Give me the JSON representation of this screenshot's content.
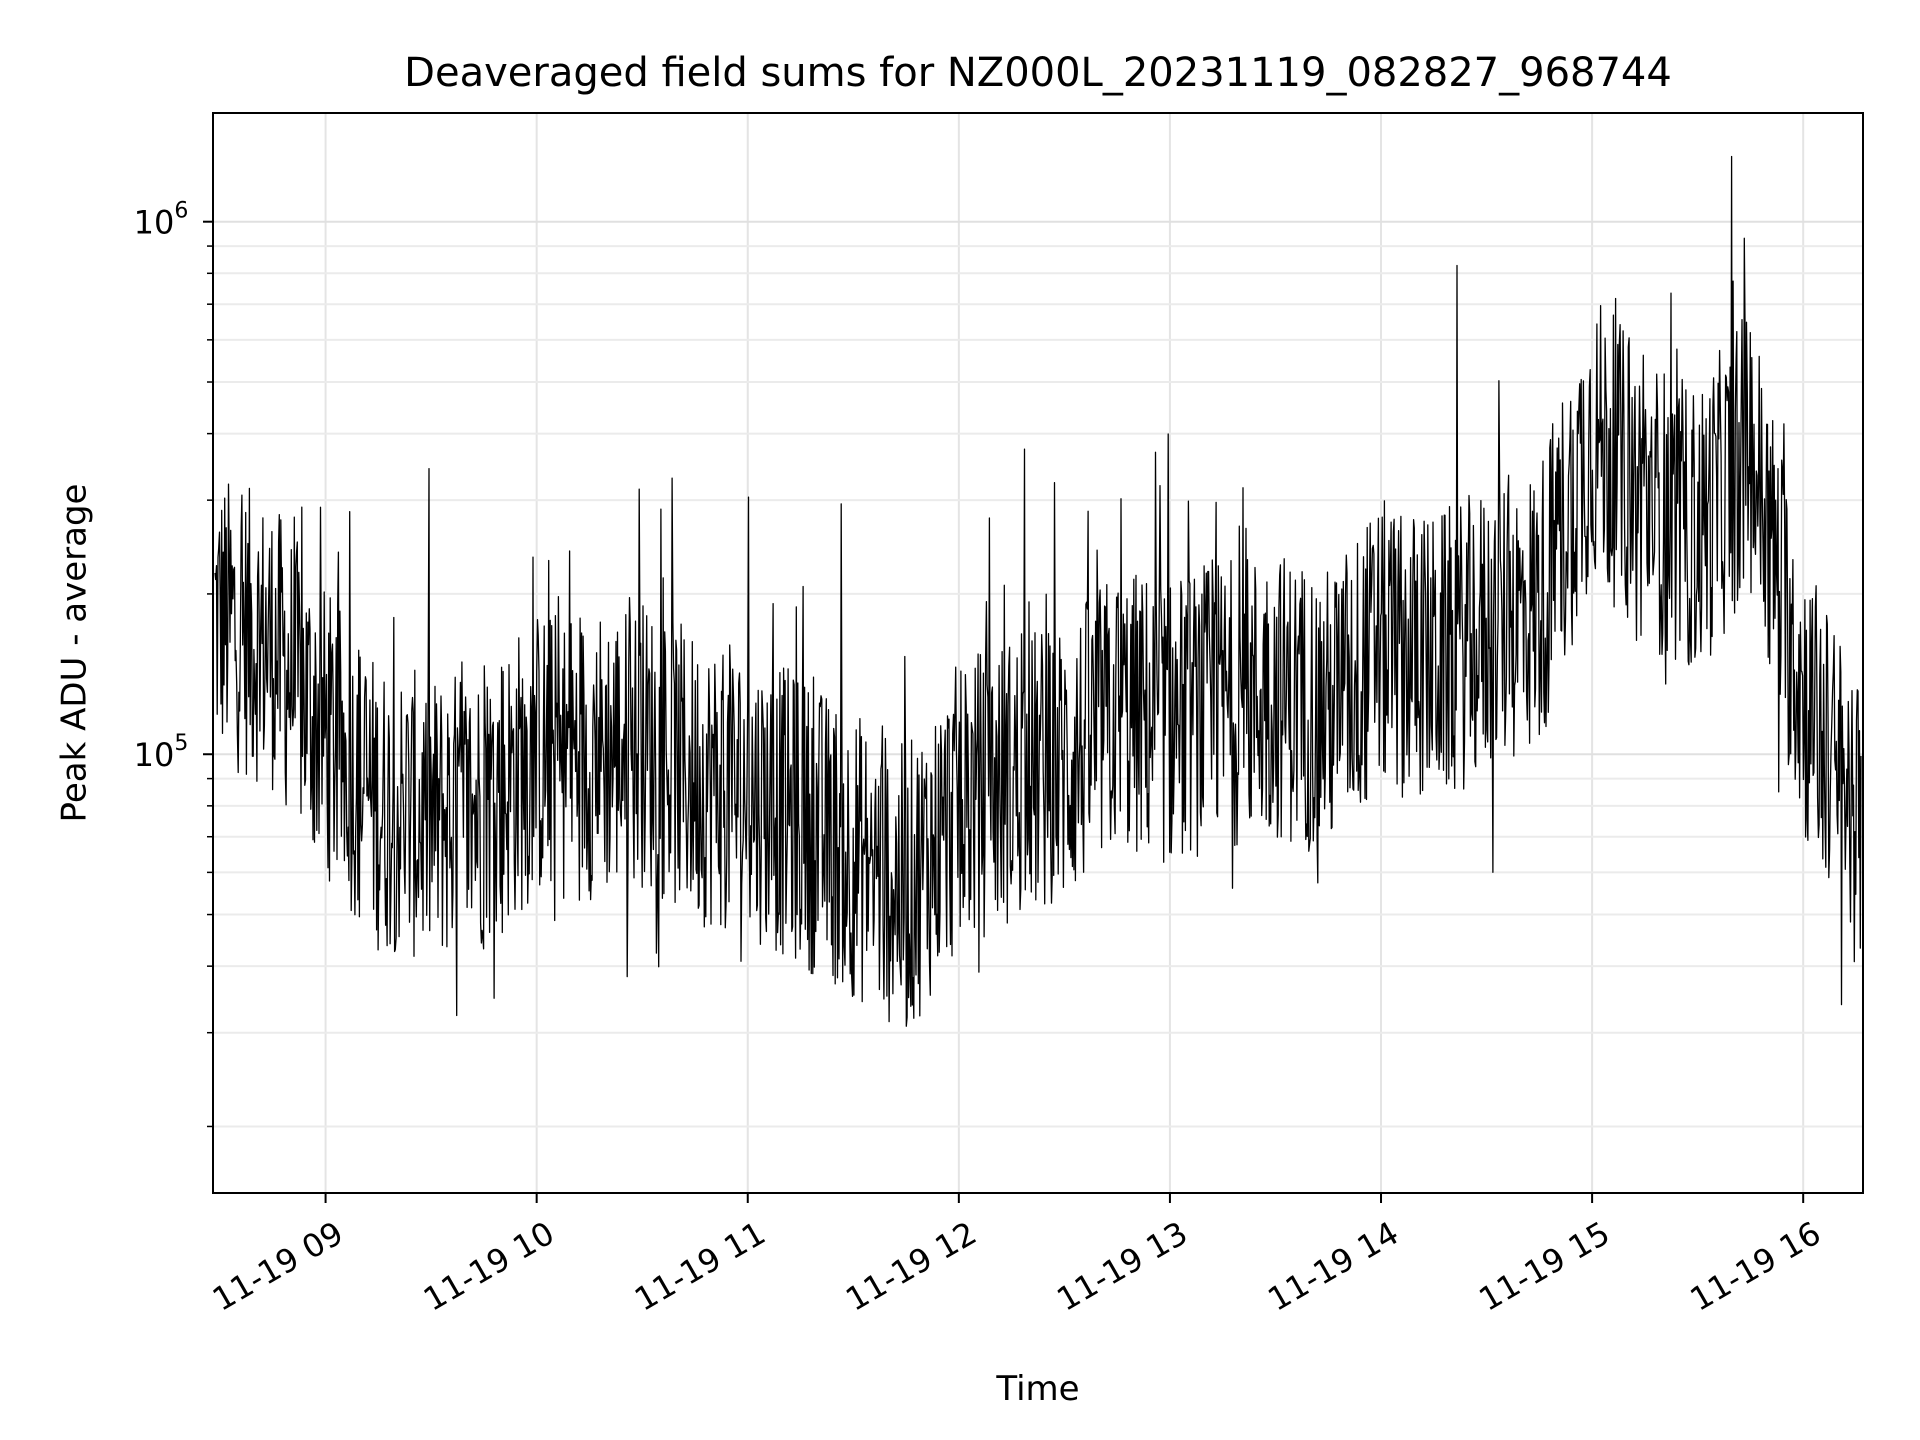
{
  "chart_data": {
    "type": "line",
    "title": "Deaveraged field sums for NZ000L_20231119_082827_968744",
    "xlabel": "Time",
    "ylabel": "Peak ADU - average",
    "yscale": "log",
    "xlim": [
      "2023-11-19 08:28",
      "2023-11-19 16:17"
    ],
    "ylim": [
      15000,
      1600000
    ],
    "grid": true,
    "line_color": "#000000",
    "x_ticks": [
      {
        "value": "2023-11-19 09:00",
        "label": "11-19 09"
      },
      {
        "value": "2023-11-19 10:00",
        "label": "11-19 10"
      },
      {
        "value": "2023-11-19 11:00",
        "label": "11-19 11"
      },
      {
        "value": "2023-11-19 12:00",
        "label": "11-19 12"
      },
      {
        "value": "2023-11-19 13:00",
        "label": "11-19 13"
      },
      {
        "value": "2023-11-19 14:00",
        "label": "11-19 14"
      },
      {
        "value": "2023-11-19 15:00",
        "label": "11-19 15"
      },
      {
        "value": "2023-11-19 16:00",
        "label": "11-19 16"
      }
    ],
    "y_ticks": [
      {
        "value": 100000,
        "base": "10",
        "exp": "5"
      },
      {
        "value": 1000000,
        "base": "10",
        "exp": "6"
      }
    ],
    "series": [
      {
        "x": [
          "2023-11-19 08:30",
          "2023-11-19 08:45",
          "2023-11-19 09:00",
          "2023-11-19 09:15",
          "2023-11-19 09:30",
          "2023-11-19 09:45",
          "2023-11-19 10:00",
          "2023-11-19 10:15",
          "2023-11-19 10:30",
          "2023-11-19 10:45",
          "2023-11-19 11:00",
          "2023-11-19 11:15",
          "2023-11-19 11:30",
          "2023-11-19 11:45",
          "2023-11-19 12:00",
          "2023-11-19 12:15",
          "2023-11-19 12:30",
          "2023-11-19 12:45",
          "2023-11-19 13:00",
          "2023-11-19 13:15",
          "2023-11-19 13:30",
          "2023-11-19 13:45",
          "2023-11-19 14:00",
          "2023-11-19 14:15",
          "2023-11-19 14:30",
          "2023-11-19 14:45",
          "2023-11-19 15:00",
          "2023-11-19 15:15",
          "2023-11-19 15:30",
          "2023-11-19 15:45",
          "2023-11-19 16:00",
          "2023-11-19 16:15"
        ],
        "y": [
          180000,
          160000,
          110000,
          80000,
          75000,
          80000,
          100000,
          100000,
          105000,
          90000,
          85000,
          75000,
          65000,
          55000,
          80000,
          90000,
          95000,
          120000,
          115000,
          125000,
          130000,
          120000,
          160000,
          150000,
          170000,
          190000,
          400000,
          300000,
          260000,
          380000,
          130000,
          75000
        ]
      }
    ]
  }
}
